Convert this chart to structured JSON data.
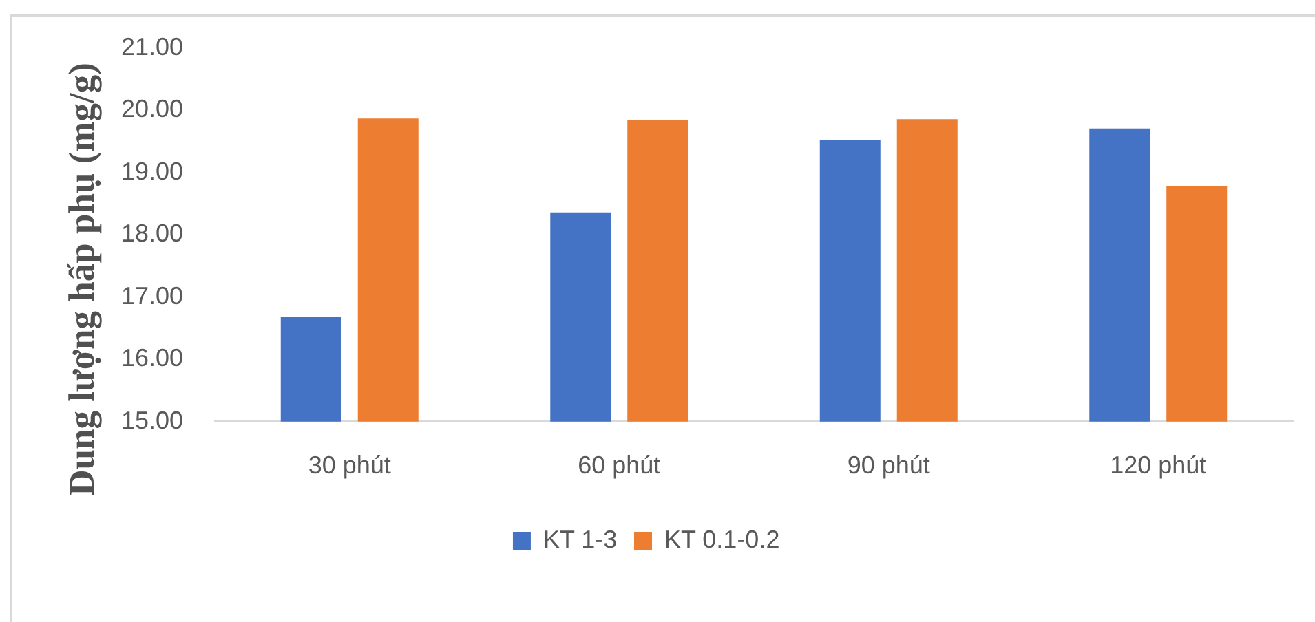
{
  "chart_data": {
    "type": "bar",
    "categories": [
      "30 phút",
      "60 phút",
      "90 phút",
      "120 phút"
    ],
    "series": [
      {
        "name": "KT 1-3",
        "color": "#4472c4",
        "values": [
          16.68,
          18.36,
          19.53,
          19.71
        ]
      },
      {
        "name": "KT 0.1-0.2",
        "color": "#ed7d31",
        "values": [
          19.87,
          19.85,
          19.86,
          18.79
        ]
      }
    ],
    "ylabel": "Dung lượng hấp phụ (mg/g)",
    "ylim": [
      15,
      21
    ],
    "yticks": [
      {
        "value": 15,
        "label": "15.00"
      },
      {
        "value": 16,
        "label": "16.00"
      },
      {
        "value": 17,
        "label": "17.00"
      },
      {
        "value": 18,
        "label": "18.00"
      },
      {
        "value": 19,
        "label": "19.00"
      },
      {
        "value": 20,
        "label": "20.00"
      },
      {
        "value": 21,
        "label": "21.00"
      }
    ],
    "grid": false,
    "legend": "bottom"
  }
}
